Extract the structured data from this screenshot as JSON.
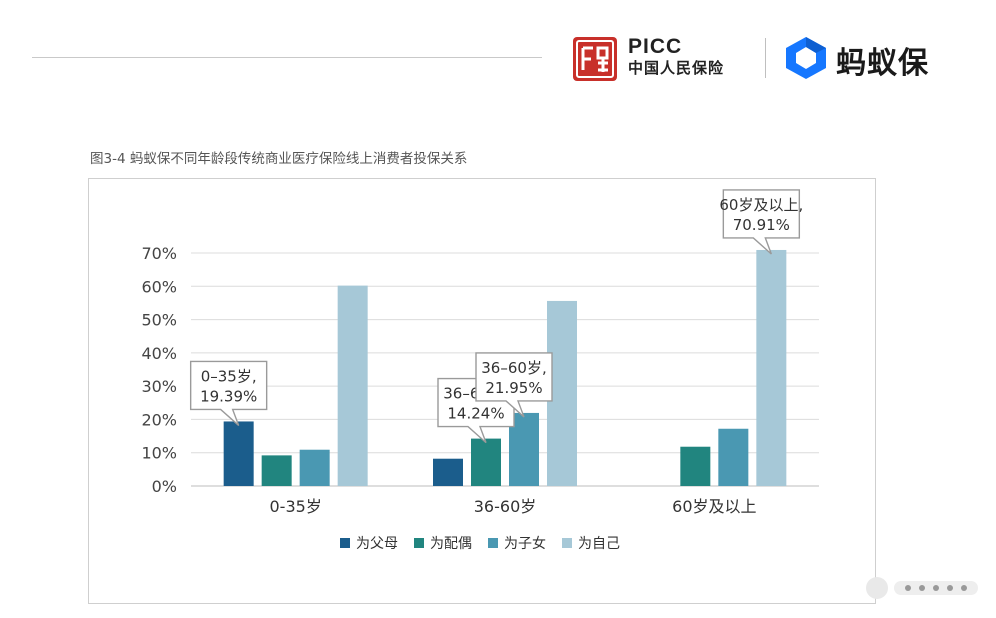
{
  "header": {
    "picc_name": "PICC",
    "picc_cn": "中国人民保险",
    "picc_icon": "picc-seal-logo",
    "ant_name": "蚂蚁保",
    "ant_icon": "ant-insurance-logo",
    "picc_color": "#c8302a",
    "ant_color": "#1677ff"
  },
  "figure": {
    "caption": "图3-4 蚂蚁保不同年龄段传统商业医疗保险线上消费者投保关系"
  },
  "chart_data": {
    "type": "bar",
    "categories": [
      "0-35岁",
      "36-60岁",
      "60岁及以上"
    ],
    "series": [
      {
        "name": "为父母",
        "color": "#1b5d8c",
        "values": [
          19.39,
          8.2,
          0
        ]
      },
      {
        "name": "为配偶",
        "color": "#21857f",
        "values": [
          9.2,
          14.24,
          11.8
        ]
      },
      {
        "name": "为子女",
        "color": "#4a98b2",
        "values": [
          10.9,
          21.95,
          17.2
        ]
      },
      {
        "name": "为自己",
        "color": "#a6c8d7",
        "values": [
          60.2,
          55.6,
          70.91
        ]
      }
    ],
    "ylim": [
      0,
      70
    ],
    "yticks": [
      0,
      10,
      20,
      30,
      40,
      50,
      60,
      70
    ],
    "ytick_labels": [
      "0%",
      "10%",
      "20%",
      "30%",
      "40%",
      "50%",
      "60%",
      "70%"
    ],
    "grid": true,
    "legend_position": "bottom-center",
    "annotations": [
      {
        "category": 0,
        "series": 0,
        "line1": "0–35岁,",
        "line2": "19.39%"
      },
      {
        "category": 1,
        "series": 1,
        "line1": "36–60岁,",
        "line2": "14.24%"
      },
      {
        "category": 1,
        "series": 2,
        "line1": "36–60岁,",
        "line2": "21.95%"
      },
      {
        "category": 2,
        "series": 3,
        "line1": "60岁及以上,",
        "line2": "70.91%"
      }
    ],
    "title": "",
    "xlabel": "",
    "ylabel": ""
  }
}
